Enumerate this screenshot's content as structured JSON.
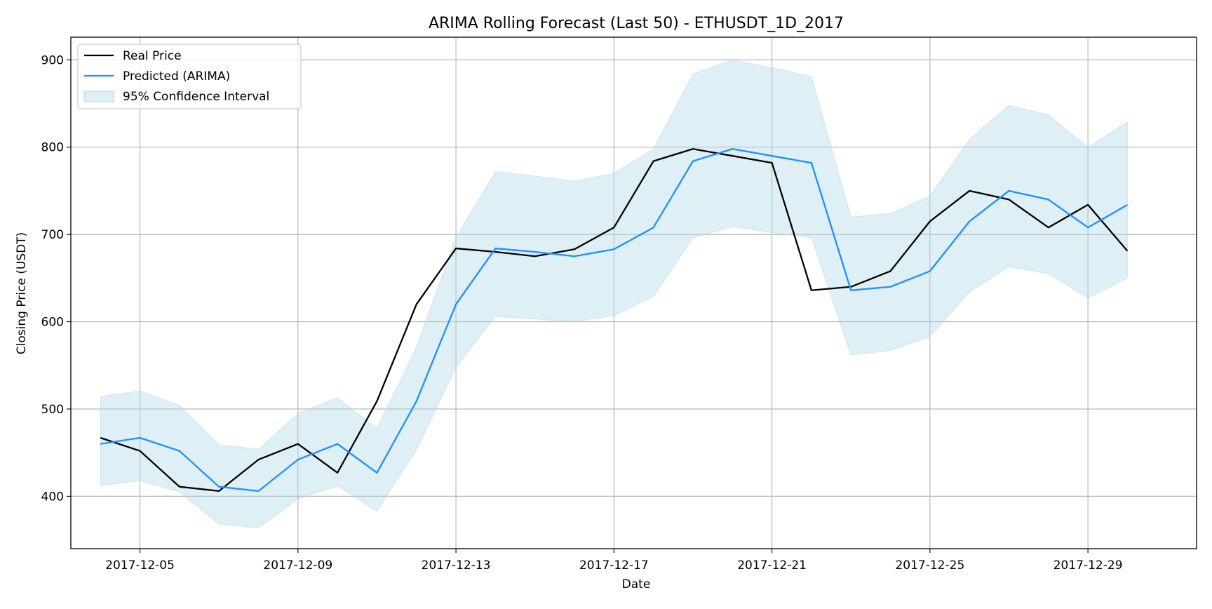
{
  "chart_data": {
    "type": "line",
    "title": "ARIMA Rolling Forecast (Last 50) - ETHUSDT_1D_2017",
    "xlabel": "Date",
    "ylabel": "Closing Price (USDT)",
    "grid": true,
    "legend_position": "top-left",
    "x": [
      "2017-12-04",
      "2017-12-05",
      "2017-12-06",
      "2017-12-07",
      "2017-12-08",
      "2017-12-09",
      "2017-12-10",
      "2017-12-11",
      "2017-12-12",
      "2017-12-13",
      "2017-12-14",
      "2017-12-15",
      "2017-12-16",
      "2017-12-17",
      "2017-12-18",
      "2017-12-19",
      "2017-12-20",
      "2017-12-21",
      "2017-12-22",
      "2017-12-23",
      "2017-12-24",
      "2017-12-25",
      "2017-12-26",
      "2017-12-27",
      "2017-12-28",
      "2017-12-29",
      "2017-12-30"
    ],
    "xlim": [
      "2017-12-03T06:00",
      "2017-12-31T18:00"
    ],
    "ylim": [
      340,
      926
    ],
    "x_ticks": [
      "2017-12-05",
      "2017-12-09",
      "2017-12-13",
      "2017-12-17",
      "2017-12-21",
      "2017-12-25",
      "2017-12-29"
    ],
    "y_ticks": [
      400,
      500,
      600,
      700,
      800,
      900
    ],
    "series": [
      {
        "name": "Real Price",
        "color": "#000000",
        "values": [
          467,
          452,
          411,
          406,
          442,
          460,
          427,
          509,
          620,
          684,
          680,
          675,
          683,
          708,
          784,
          798,
          790,
          782,
          636,
          640,
          658,
          715,
          750,
          740,
          708,
          734,
          681
        ]
      },
      {
        "name": "Predicted (ARIMA)",
        "color": "#1e90ff",
        "values": [
          460,
          467,
          452,
          411,
          406,
          442,
          460,
          427,
          509,
          620,
          684,
          680,
          675,
          683,
          708,
          784,
          798,
          790,
          782,
          636,
          640,
          658,
          715,
          750,
          740,
          708,
          734
        ]
      }
    ],
    "confidence_interval": {
      "name": "95% Confidence Interval",
      "color": "#add8e6",
      "lower": [
        412,
        418,
        405,
        368,
        364,
        397,
        412,
        383,
        453,
        548,
        606,
        603,
        600,
        607,
        629,
        696,
        709,
        702,
        696,
        562,
        567,
        583,
        634,
        663,
        655,
        627,
        650
      ],
      "upper": [
        514,
        521,
        504,
        459,
        454,
        495,
        513,
        478,
        571,
        697,
        772,
        767,
        761,
        770,
        798,
        884,
        900,
        891,
        881,
        720,
        724,
        744,
        809,
        848,
        837,
        800,
        829
      ]
    }
  }
}
